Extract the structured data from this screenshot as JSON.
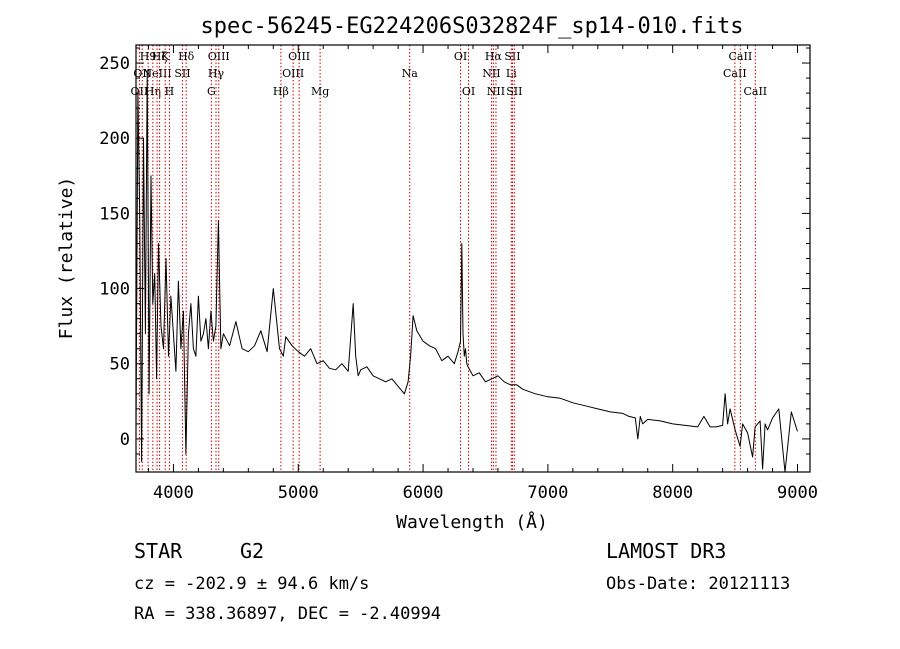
{
  "chart_data": {
    "type": "line",
    "title": "spec-56245-EG224206S032824F_sp14-010.fits",
    "xlabel": "Wavelength (Å)",
    "ylabel": "Flux (relative)",
    "xlim": [
      3700,
      9100
    ],
    "ylim": [
      -22,
      262
    ],
    "x_ticks": [
      4000,
      5000,
      6000,
      7000,
      8000,
      9000
    ],
    "x_tick_labels": [
      "4000",
      "5000",
      "6000",
      "7000",
      "8000",
      "9000"
    ],
    "y_ticks": [
      0,
      50,
      100,
      150,
      200,
      250
    ],
    "y_tick_labels": [
      "0",
      "50",
      "100",
      "150",
      "200",
      "250"
    ],
    "grid": false,
    "series": [
      {
        "name": "flux",
        "x": [
          3700,
          3715,
          3730,
          3745,
          3760,
          3775,
          3790,
          3805,
          3820,
          3835,
          3850,
          3865,
          3880,
          3900,
          3920,
          3940,
          3960,
          3980,
          4000,
          4020,
          4040,
          4060,
          4080,
          4100,
          4120,
          4140,
          4160,
          4180,
          4200,
          4220,
          4240,
          4260,
          4280,
          4300,
          4320,
          4340,
          4360,
          4380,
          4400,
          4450,
          4500,
          4550,
          4600,
          4650,
          4700,
          4750,
          4800,
          4850,
          4880,
          4900,
          4950,
          5000,
          5050,
          5100,
          5150,
          5200,
          5250,
          5300,
          5350,
          5400,
          5440,
          5460,
          5480,
          5500,
          5550,
          5600,
          5650,
          5700,
          5750,
          5800,
          5850,
          5880,
          5900,
          5920,
          5950,
          6000,
          6050,
          6100,
          6150,
          6200,
          6250,
          6280,
          6300,
          6310,
          6320,
          6330,
          6340,
          6350,
          6360,
          6380,
          6400,
          6450,
          6500,
          6550,
          6600,
          6650,
          6700,
          6750,
          6800,
          6900,
          7000,
          7100,
          7200,
          7300,
          7400,
          7500,
          7600,
          7650,
          7700,
          7720,
          7740,
          7760,
          7800,
          7900,
          8000,
          8100,
          8200,
          8250,
          8300,
          8350,
          8400,
          8420,
          8440,
          8460,
          8500,
          8540,
          8560,
          8600,
          8640,
          8660,
          8700,
          8720,
          8740,
          8760,
          8800,
          8850,
          8900,
          8950,
          9000
        ],
        "values": [
          5,
          230,
          150,
          -15,
          200,
          70,
          245,
          30,
          175,
          90,
          110,
          40,
          130,
          75,
          60,
          120,
          55,
          95,
          70,
          45,
          105,
          60,
          85,
          -10,
          70,
          90,
          60,
          55,
          95,
          65,
          70,
          80,
          60,
          85,
          65,
          75,
          145,
          60,
          70,
          62,
          78,
          60,
          58,
          62,
          72,
          58,
          100,
          60,
          55,
          68,
          62,
          58,
          55,
          60,
          50,
          52,
          47,
          46,
          50,
          45,
          90,
          55,
          42,
          46,
          48,
          42,
          40,
          38,
          40,
          35,
          30,
          38,
          55,
          82,
          72,
          65,
          62,
          60,
          52,
          55,
          50,
          58,
          65,
          130,
          70,
          55,
          60,
          50,
          48,
          45,
          42,
          44,
          38,
          40,
          42,
          38,
          36,
          36,
          33,
          30,
          28,
          27,
          24,
          22,
          20,
          18,
          17,
          15,
          14,
          0,
          15,
          10,
          13,
          12,
          10,
          9,
          8,
          15,
          8,
          8,
          9,
          30,
          10,
          20,
          6,
          -5,
          10,
          4,
          -12,
          8,
          12,
          -20,
          10,
          6,
          14,
          20,
          -25,
          18,
          5
        ]
      }
    ],
    "line_markers": [
      {
        "x": 3727,
        "label": "OII",
        "row": 2
      },
      {
        "x": 3750,
        "label": "OII",
        "row": 1
      },
      {
        "x": 3797,
        "label": "H9",
        "row": 0
      },
      {
        "x": 3835,
        "label": "Hη",
        "row": 2
      },
      {
        "x": 3869,
        "label": "NeIII",
        "row": 1
      },
      {
        "x": 3889,
        "label": "Hζ",
        "row": 0
      },
      {
        "x": 3934,
        "label": "K",
        "row": 0
      },
      {
        "x": 3968,
        "label": "H",
        "row": 2
      },
      {
        "x": 4072,
        "label": "SII",
        "row": 1
      },
      {
        "x": 4102,
        "label": "Hδ",
        "row": 0
      },
      {
        "x": 4304,
        "label": "G",
        "row": 2
      },
      {
        "x": 4341,
        "label": "Hγ",
        "row": 1
      },
      {
        "x": 4363,
        "label": "OIII",
        "row": 0
      },
      {
        "x": 4861,
        "label": "Hβ",
        "row": 2
      },
      {
        "x": 4959,
        "label": "OIII",
        "row": 1
      },
      {
        "x": 5007,
        "label": "OIII",
        "row": 0
      },
      {
        "x": 5175,
        "label": "Mg",
        "row": 2
      },
      {
        "x": 5893,
        "label": "Na",
        "row": 1
      },
      {
        "x": 6300,
        "label": "OI",
        "row": 0
      },
      {
        "x": 6364,
        "label": "OI",
        "row": 2
      },
      {
        "x": 6548,
        "label": "NII",
        "row": 1
      },
      {
        "x": 6563,
        "label": "Hα",
        "row": 0
      },
      {
        "x": 6584,
        "label": "NII",
        "row": 2
      },
      {
        "x": 6707,
        "label": "Li",
        "row": 1
      },
      {
        "x": 6716,
        "label": "SII",
        "row": 0
      },
      {
        "x": 6731,
        "label": "SII",
        "row": 2
      },
      {
        "x": 8498,
        "label": "CaII",
        "row": 1
      },
      {
        "x": 8542,
        "label": "CaII",
        "row": 0
      },
      {
        "x": 8662,
        "label": "CaII",
        "row": 2
      }
    ]
  },
  "info": {
    "object_class": "STAR",
    "subclass": "G2",
    "survey": "LAMOST DR3",
    "redshift": "cz = -202.9 ± 94.6 km/s",
    "obs_date": "Obs-Date: 20121113",
    "coords": "RA = 338.36897, DEC =  -2.40994"
  }
}
